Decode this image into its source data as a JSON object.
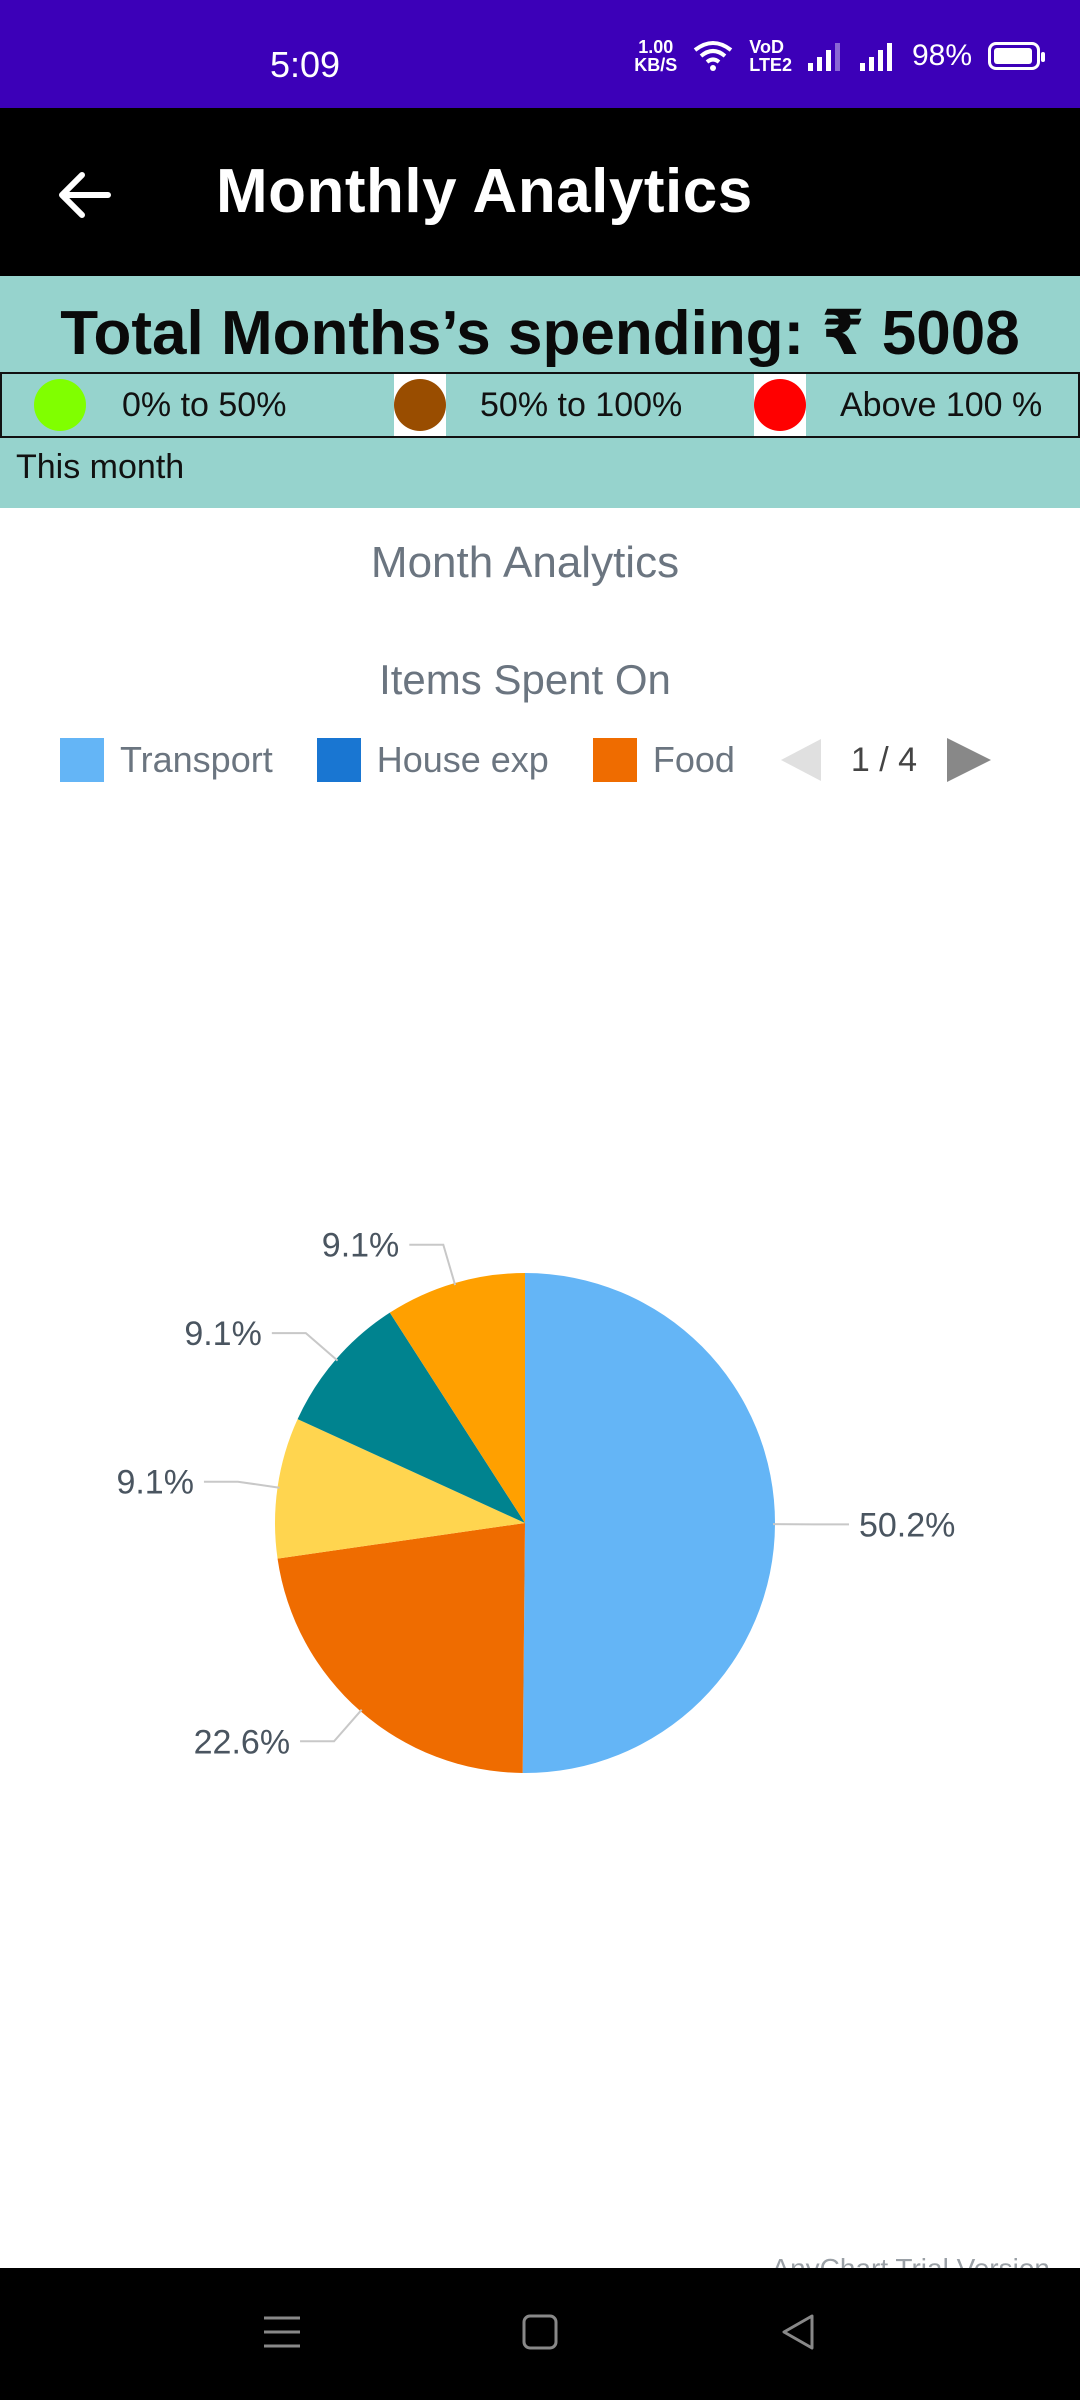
{
  "status_bar": {
    "time": "5:09",
    "net_speed_value": "1.00",
    "net_speed_unit": "KB/S",
    "volte_top": "VoD",
    "volte_bottom": "LTE2",
    "battery": "98%"
  },
  "app_bar": {
    "title": "Monthly Analytics"
  },
  "summary": {
    "total_label": "Total Months’s spending: ₹ 5008",
    "legend": [
      {
        "label": "0% to 50%",
        "color": "#80ff00"
      },
      {
        "label": "50% to 100%",
        "color": "#994d00"
      },
      {
        "label": "Above 100 %",
        "color": "#ff0000"
      }
    ],
    "period": "This month"
  },
  "chart": {
    "title": "Month Analytics",
    "subtitle": "Items Spent On",
    "legend": [
      {
        "label": "Transport",
        "color": "#64b5f6"
      },
      {
        "label": "House exp",
        "color": "#1976d2"
      },
      {
        "label": "Food",
        "color": "#ef6c00"
      }
    ],
    "pager": "1 / 4",
    "trial_text": "AnyChart Trial Version"
  },
  "chart_data": {
    "type": "pie",
    "title": "Month Analytics",
    "subtitle": "Items Spent On",
    "slices": [
      {
        "label": "50.2%",
        "value": 50.2,
        "color": "#64b5f6"
      },
      {
        "label": "22.6%",
        "value": 22.6,
        "color": "#ef6c00"
      },
      {
        "label": "9.1%",
        "value": 9.1,
        "color": "#ffd54f"
      },
      {
        "label": "9.1%",
        "value": 9.1,
        "color": "#00838f"
      },
      {
        "label": "9.1%",
        "value": 9.1,
        "color": "#ffa000"
      }
    ]
  }
}
